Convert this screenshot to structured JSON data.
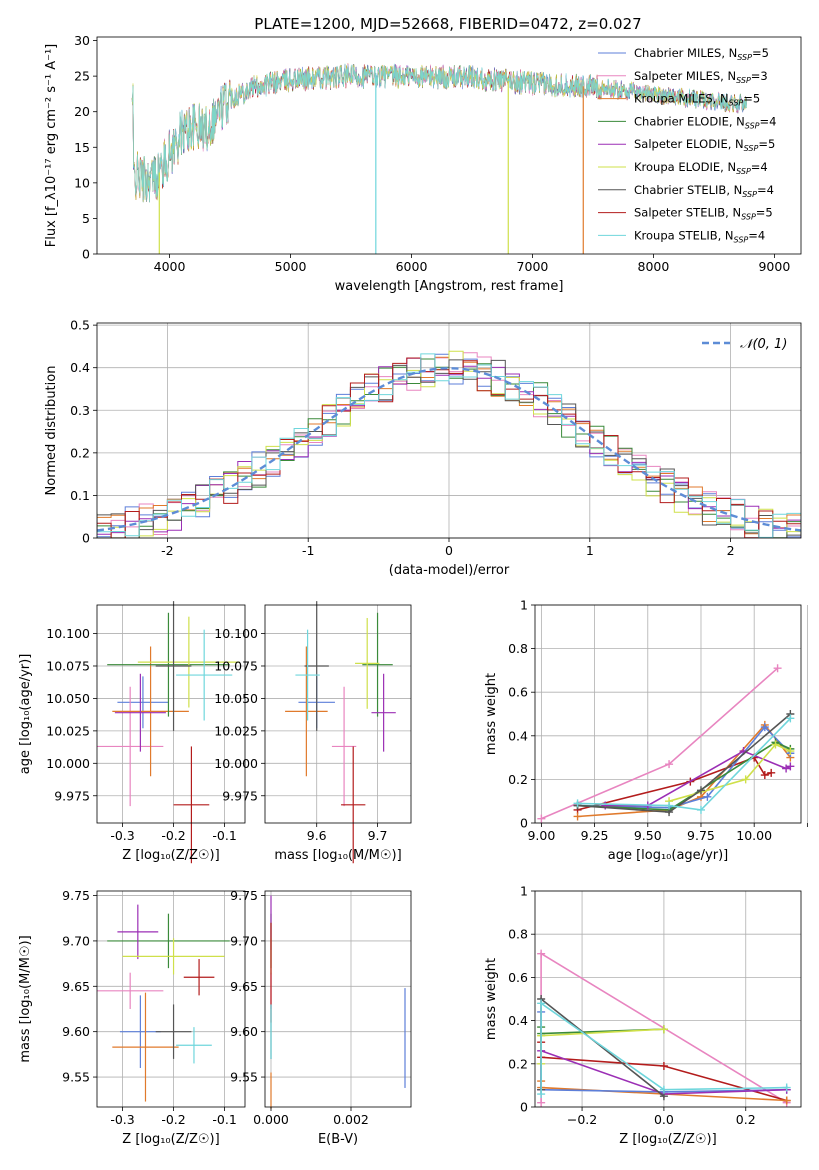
{
  "figure": {
    "title": "PLATE=1200, MJD=52668, FIBERID=0472, z=0.027"
  },
  "colors": {
    "Chabrier MILES": "#5d7fd9",
    "Salpeter MILES": "#e885c0",
    "Kroupa MILES": "#e07a2c",
    "Chabrier ELODIE": "#3a8a3a",
    "Salpeter ELODIE": "#9b2fb5",
    "Kroupa ELODIE": "#cfe04a",
    "Chabrier STELIB": "#555555",
    "Salpeter STELIB": "#b31c1c",
    "Kroupa STELIB": "#6fd6dc"
  },
  "chart_data": [
    {
      "id": "spectrum",
      "type": "line",
      "xlabel": "wavelength [Angstrom, rest frame]",
      "ylabel": "Flux [f_λ10⁻¹⁷ erg cm⁻² s⁻¹ A⁻¹]",
      "xlim": [
        3400,
        9220
      ],
      "ylim": [
        0,
        30.5
      ],
      "xticks": [
        4000,
        5000,
        6000,
        7000,
        8000,
        9000
      ],
      "yticks": [
        0,
        5,
        10,
        15,
        20,
        25,
        30
      ],
      "grid": false,
      "legend_position": "top-right",
      "legend": [
        {
          "label": "Chabrier MILES, N_SSP=5",
          "color": "#5d7fd9"
        },
        {
          "label": "Salpeter MILES, N_SSP=3",
          "color": "#e885c0"
        },
        {
          "label": "Kroupa MILES, N_SSP=5",
          "color": "#e07a2c"
        },
        {
          "label": "Chabrier ELODIE, N_SSP=4",
          "color": "#3a8a3a"
        },
        {
          "label": "Salpeter ELODIE, N_SSP=5",
          "color": "#9b2fb5"
        },
        {
          "label": "Kroupa ELODIE, N_SSP=4",
          "color": "#cfe04a"
        },
        {
          "label": "Chabrier STELIB, N_SSP=4",
          "color": "#555555"
        },
        {
          "label": "Salpeter STELIB, N_SSP=5",
          "color": "#b31c1c"
        },
        {
          "label": "Kroupa STELIB, N_SSP=4",
          "color": "#6fd6dc"
        }
      ],
      "continuum": [
        [
          3700,
          11
        ],
        [
          3800,
          10.5
        ],
        [
          3900,
          11
        ],
        [
          4000,
          14
        ],
        [
          4100,
          17
        ],
        [
          4200,
          18
        ],
        [
          4300,
          17.5
        ],
        [
          4400,
          20
        ],
        [
          4500,
          22
        ],
        [
          4700,
          23.5
        ],
        [
          5000,
          24.5
        ],
        [
          5500,
          25
        ],
        [
          6000,
          25
        ],
        [
          6500,
          24.8
        ],
        [
          7000,
          24
        ],
        [
          7500,
          23.5
        ],
        [
          8000,
          22.5
        ],
        [
          8500,
          21.5
        ],
        [
          8770,
          21
        ]
      ],
      "dropouts": [
        {
          "x": 3915,
          "y": 0,
          "color": "#cfe04a"
        },
        {
          "x": 5705,
          "y": 0,
          "color": "#6fd6dc"
        },
        {
          "x": 6800,
          "y": 0,
          "color": "#cfe04a"
        },
        {
          "x": 7420,
          "y": 0,
          "color": "#e07a2c"
        }
      ],
      "series_range": [
        3690,
        8770
      ]
    },
    {
      "id": "residuals",
      "type": "histogram",
      "xlabel": "(data-model)/error",
      "ylabel": "Normed distribution",
      "xlim": [
        -2.5,
        2.5
      ],
      "ylim": [
        0,
        0.505
      ],
      "xticks": [
        -2,
        -1,
        0,
        1,
        2
      ],
      "yticks": [
        0,
        0.1,
        0.2,
        0.3,
        0.4,
        0.5
      ],
      "grid": true,
      "bin_width": 0.1,
      "legend_position": "top-right",
      "legend": [
        {
          "label": "𝒩(0, 1)",
          "color": "#5d8cd6",
          "style": "dashed"
        }
      ],
      "series": [
        "Chabrier MILES",
        "Salpeter MILES",
        "Kroupa MILES",
        "Chabrier ELODIE",
        "Salpeter ELODIE",
        "Kroupa ELODIE",
        "Chabrier STELIB",
        "Salpeter STELIB",
        "Kroupa STELIB"
      ]
    },
    {
      "id": "age-Z",
      "type": "scatter",
      "xlabel": "Z [log₁₀(Z/Z☉)]",
      "ylabel": "age  [log₁₀(age/yr)]",
      "xlim": [
        -0.35,
        -0.06
      ],
      "ylim": [
        9.954,
        10.122
      ],
      "xticks": [
        -0.3,
        -0.2,
        -0.1
      ],
      "yticks": [
        9.975,
        10.0,
        10.025,
        10.05,
        10.075,
        10.1
      ],
      "ytick_labels": [
        "9.975",
        "10.000",
        "10.025",
        "10.050",
        "10.075",
        "10.100"
      ],
      "grid": true,
      "points": [
        {
          "series": "Chabrier MILES",
          "x": -0.26,
          "y": 10.047,
          "xerr": 0.05,
          "yerr": 0.02
        },
        {
          "series": "Salpeter MILES",
          "x": -0.285,
          "y": 10.013,
          "xerr": 0.065,
          "yerr": 0.046
        },
        {
          "series": "Kroupa MILES",
          "x": -0.245,
          "y": 10.04,
          "xerr": 0.075,
          "yerr": 0.05
        },
        {
          "series": "Chabrier ELODIE",
          "x": -0.21,
          "y": 10.076,
          "xerr": 0.12,
          "yerr": 0.04
        },
        {
          "series": "Salpeter ELODIE",
          "x": -0.265,
          "y": 10.039,
          "xerr": 0.05,
          "yerr": 0.03
        },
        {
          "series": "Kroupa ELODIE",
          "x": -0.17,
          "y": 10.078,
          "xerr": 0.1,
          "yerr": 0.035
        },
        {
          "series": "Chabrier STELIB",
          "x": -0.2,
          "y": 10.075,
          "xerr": 0.035,
          "yerr": 0.05
        },
        {
          "series": "Salpeter STELIB",
          "x": -0.165,
          "y": 9.968,
          "xerr": 0.035,
          "yerr": 0.045
        },
        {
          "series": "Kroupa STELIB",
          "x": -0.14,
          "y": 10.068,
          "xerr": 0.055,
          "yerr": 0.035
        }
      ]
    },
    {
      "id": "age-mass",
      "type": "scatter",
      "xlabel": "mass [log₁₀(M/M☉)]",
      "ylabel": "",
      "xlim": [
        9.515,
        9.755
      ],
      "ylim": [
        9.954,
        10.122
      ],
      "xticks": [
        9.6,
        9.7
      ],
      "yticks": [
        9.975,
        10.0,
        10.025,
        10.05,
        10.075,
        10.1
      ],
      "ytick_labels": [
        "9.975",
        "10.000",
        "10.025",
        "10.050",
        "10.075",
        "10.100"
      ],
      "grid": true,
      "points": [
        {
          "series": "Chabrier MILES",
          "x": 9.6,
          "y": 10.047,
          "xerr": 0.03,
          "yerr": 0.02
        },
        {
          "series": "Salpeter MILES",
          "x": 9.645,
          "y": 10.013,
          "xerr": 0.02,
          "yerr": 0.046
        },
        {
          "series": "Kroupa MILES",
          "x": 9.583,
          "y": 10.04,
          "xerr": 0.035,
          "yerr": 0.05
        },
        {
          "series": "Chabrier ELODIE",
          "x": 9.7,
          "y": 10.076,
          "xerr": 0.025,
          "yerr": 0.04
        },
        {
          "series": "Salpeter ELODIE",
          "x": 9.71,
          "y": 10.039,
          "xerr": 0.02,
          "yerr": 0.03
        },
        {
          "series": "Kroupa ELODIE",
          "x": 9.683,
          "y": 10.077,
          "xerr": 0.02,
          "yerr": 0.035
        },
        {
          "series": "Chabrier STELIB",
          "x": 9.6,
          "y": 10.075,
          "xerr": 0.02,
          "yerr": 0.05
        },
        {
          "series": "Salpeter STELIB",
          "x": 9.66,
          "y": 9.968,
          "xerr": 0.02,
          "yerr": 0.045
        },
        {
          "series": "Kroupa STELIB",
          "x": 9.585,
          "y": 10.068,
          "xerr": 0.02,
          "yerr": 0.035
        }
      ]
    },
    {
      "id": "weight-age",
      "type": "line",
      "xlabel": "age  [log₁₀(age/yr)]",
      "ylabel": "mass weight",
      "xlim": [
        8.97,
        10.22
      ],
      "ylim": [
        0,
        1
      ],
      "xticks": [
        9.0,
        9.25,
        9.5,
        9.75,
        10.0,
        10.25
      ],
      "xtick_labels": [
        "9.00",
        "9.25",
        "9.50",
        "9.75",
        "10.00"
      ],
      "yticks": [
        0,
        0.2,
        0.4,
        0.6,
        0.8,
        1.0
      ],
      "grid": true,
      "series": [
        {
          "name": "Salpeter MILES",
          "x": [
            9.0,
            9.6,
            10.11
          ],
          "y": [
            0.02,
            0.27,
            0.71
          ]
        },
        {
          "name": "Salpeter STELIB",
          "x": [
            9.17,
            9.7,
            10.0,
            10.05,
            10.08
          ],
          "y": [
            0.06,
            0.19,
            0.3,
            0.22,
            0.23
          ]
        },
        {
          "name": "Kroupa MILES",
          "x": [
            9.17,
            9.6,
            9.75,
            10.05,
            10.17
          ],
          "y": [
            0.03,
            0.06,
            0.12,
            0.45,
            0.3
          ]
        },
        {
          "name": "Chabrier MILES",
          "x": [
            9.17,
            9.6,
            9.78,
            10.05,
            10.17
          ],
          "y": [
            0.08,
            0.07,
            0.12,
            0.44,
            0.32
          ]
        },
        {
          "name": "Chabrier ELODIE",
          "x": [
            9.17,
            9.6,
            10.1,
            10.17
          ],
          "y": [
            0.08,
            0.06,
            0.37,
            0.34
          ]
        },
        {
          "name": "Salpeter ELODIE",
          "x": [
            9.3,
            9.5,
            9.95,
            10.15,
            10.17
          ],
          "y": [
            0.08,
            0.08,
            0.33,
            0.25,
            0.26
          ]
        },
        {
          "name": "Kroupa ELODIE",
          "x": [
            9.6,
            9.96,
            10.1,
            10.17
          ],
          "y": [
            0.1,
            0.2,
            0.36,
            0.33
          ]
        },
        {
          "name": "Chabrier STELIB",
          "x": [
            9.17,
            9.6,
            9.75,
            10.17
          ],
          "y": [
            0.08,
            0.05,
            0.15,
            0.5
          ]
        },
        {
          "name": "Kroupa STELIB",
          "x": [
            9.17,
            9.6,
            9.75,
            10.17
          ],
          "y": [
            0.09,
            0.08,
            0.06,
            0.48
          ]
        }
      ]
    },
    {
      "id": "mass-Z",
      "type": "scatter",
      "xlabel": "Z [log₁₀(Z/Z☉)]",
      "ylabel": "mass [log₁₀(M/M☉)]",
      "xlim": [
        -0.35,
        -0.06
      ],
      "ylim": [
        9.517,
        9.755
      ],
      "xticks": [
        -0.3,
        -0.2,
        -0.1
      ],
      "yticks": [
        9.55,
        9.6,
        9.65,
        9.7,
        9.75
      ],
      "ytick_labels": [
        "9.55",
        "9.60",
        "9.65",
        "9.70",
        "9.75"
      ],
      "grid": true,
      "points": [
        {
          "series": "Chabrier MILES",
          "x": -0.265,
          "y": 9.6,
          "xerr": 0.04,
          "yerr": 0.04
        },
        {
          "series": "Salpeter MILES",
          "x": -0.285,
          "y": 9.645,
          "xerr": 0.065,
          "yerr": 0.02
        },
        {
          "series": "Kroupa MILES",
          "x": -0.255,
          "y": 9.583,
          "xerr": 0.065,
          "yerr": 0.06
        },
        {
          "series": "Chabrier ELODIE",
          "x": -0.21,
          "y": 9.7,
          "xerr": 0.12,
          "yerr": 0.03
        },
        {
          "series": "Salpeter ELODIE",
          "x": -0.27,
          "y": 9.71,
          "xerr": 0.04,
          "yerr": 0.03
        },
        {
          "series": "Kroupa ELODIE",
          "x": -0.2,
          "y": 9.683,
          "xerr": 0.1,
          "yerr": 0.02
        },
        {
          "series": "Chabrier STELIB",
          "x": -0.2,
          "y": 9.6,
          "xerr": 0.035,
          "yerr": 0.03
        },
        {
          "series": "Salpeter STELIB",
          "x": -0.15,
          "y": 9.66,
          "xerr": 0.03,
          "yerr": 0.02
        },
        {
          "series": "Kroupa STELIB",
          "x": -0.16,
          "y": 9.585,
          "xerr": 0.035,
          "yerr": 0.02
        }
      ]
    },
    {
      "id": "mass-EBV",
      "type": "scatter",
      "xlabel": "E(B-V)",
      "ylabel": "",
      "xlim": [
        -0.00015,
        0.0035
      ],
      "ylim": [
        9.517,
        9.755
      ],
      "xticks": [
        0.0,
        0.002
      ],
      "xtick_labels": [
        "0.000",
        "0.002"
      ],
      "yticks": [
        9.55,
        9.6,
        9.65,
        9.7,
        9.75
      ],
      "ytick_labels": [
        "9.55",
        "9.60",
        "9.65",
        "9.70",
        "9.75"
      ],
      "grid": true,
      "points": [
        {
          "series": "Chabrier MILES",
          "x": 0.00335,
          "y": 9.593,
          "xerr": 0,
          "yerr": 0.055
        },
        {
          "series": "Salpeter MILES",
          "x": 0.0,
          "y": 9.645,
          "xerr": 0,
          "yerr": 0.02
        },
        {
          "series": "Kroupa MILES",
          "x": 0.0,
          "y": 9.535,
          "xerr": 0,
          "yerr": 0.02
        },
        {
          "series": "Chabrier ELODIE",
          "x": 0.0,
          "y": 9.7,
          "xerr": 0,
          "yerr": 0.03
        },
        {
          "series": "Salpeter ELODIE",
          "x": 0.0,
          "y": 9.72,
          "xerr": 0,
          "yerr": 0.03
        },
        {
          "series": "Kroupa ELODIE",
          "x": 0.0,
          "y": 9.683,
          "xerr": 0,
          "yerr": 0.02
        },
        {
          "series": "Chabrier STELIB",
          "x": 0.0,
          "y": 9.6,
          "xerr": 0,
          "yerr": 0.03
        },
        {
          "series": "Salpeter STELIB",
          "x": 0.0,
          "y": 9.665,
          "xerr": 0,
          "yerr": 0.055
        },
        {
          "series": "Kroupa STELIB",
          "x": 0.0,
          "y": 9.6,
          "xerr": 0,
          "yerr": 0.03
        }
      ]
    },
    {
      "id": "weight-Z",
      "type": "line",
      "xlabel": "Z [log₁₀(Z/Z☉)]",
      "ylabel": "mass weight",
      "xlim": [
        -0.315,
        0.335
      ],
      "ylim": [
        0,
        1
      ],
      "xticks": [
        -0.2,
        0.0,
        0.2
      ],
      "xtick_labels": [
        "−0.2",
        "0.0",
        "0.2"
      ],
      "yticks": [
        0,
        0.2,
        0.4,
        0.6,
        0.8,
        1.0
      ],
      "grid": true,
      "series": [
        {
          "name": "Salpeter MILES",
          "x": [
            -0.3,
            -0.3,
            0.3
          ],
          "y": [
            0.02,
            0.71,
            0.02
          ]
        },
        {
          "name": "Salpeter STELIB",
          "x": [
            -0.3,
            -0.3,
            0.0,
            0.3
          ],
          "y": [
            0.3,
            0.23,
            0.19,
            0.03
          ]
        },
        {
          "name": "Kroupa MILES",
          "x": [
            -0.3,
            -0.3,
            0.0,
            0.3
          ],
          "y": [
            0.12,
            0.09,
            0.06,
            0.03
          ]
        },
        {
          "name": "Chabrier MILES",
          "x": [
            -0.3,
            -0.3,
            0.0,
            0.3
          ],
          "y": [
            0.44,
            0.08,
            0.07,
            0.08
          ]
        },
        {
          "name": "Chabrier ELODIE",
          "x": [
            -0.3,
            -0.3,
            0.0
          ],
          "y": [
            0.37,
            0.34,
            0.36
          ]
        },
        {
          "name": "Salpeter ELODIE",
          "x": [
            -0.3,
            -0.3,
            0.0,
            0.3
          ],
          "y": [
            0.08,
            0.26,
            0.06,
            0.08
          ]
        },
        {
          "name": "Kroupa ELODIE",
          "x": [
            -0.3,
            -0.3,
            0.0
          ],
          "y": [
            0.2,
            0.33,
            0.36
          ]
        },
        {
          "name": "Chabrier STELIB",
          "x": [
            -0.3,
            -0.3,
            0.0
          ],
          "y": [
            0.08,
            0.5,
            0.05
          ]
        },
        {
          "name": "Kroupa STELIB",
          "x": [
            -0.3,
            -0.3,
            0.0,
            0.3
          ],
          "y": [
            0.06,
            0.48,
            0.08,
            0.09
          ]
        }
      ]
    }
  ]
}
